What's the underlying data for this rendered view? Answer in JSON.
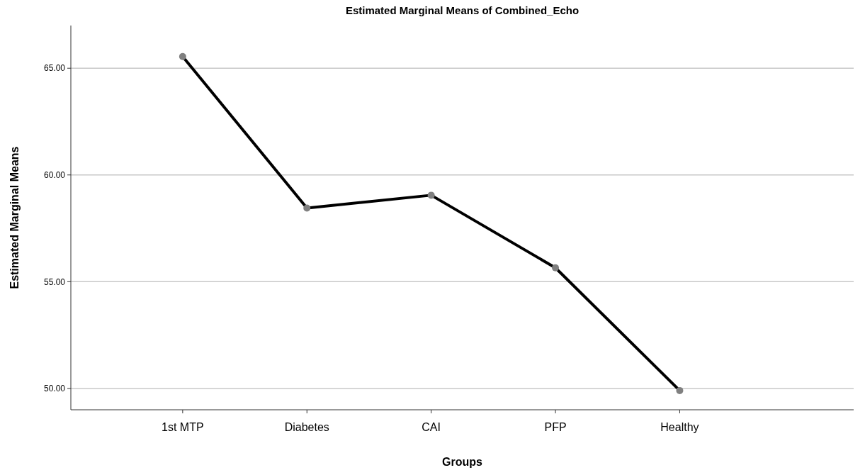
{
  "chart_data": {
    "type": "line",
    "title": "Estimated Marginal Means of Combined_Echo",
    "xlabel": "Groups",
    "ylabel": "Estimated Marginal Means",
    "categories": [
      "1st MTP",
      "Diabetes",
      "CAI",
      "PFP",
      "Healthy"
    ],
    "series": [
      {
        "color": "#000000",
        "values": [
          65.55,
          58.45,
          59.05,
          55.65,
          49.9
        ]
      }
    ],
    "ylim": [
      49,
      67
    ],
    "yticks": [
      {
        "value": 50,
        "label": "50.00"
      },
      {
        "value": 55,
        "label": "55.00"
      },
      {
        "value": 60,
        "label": "60.00"
      },
      {
        "value": 65,
        "label": "65.00"
      }
    ],
    "grid": "y",
    "marker": "circle",
    "line_style": "solid"
  }
}
